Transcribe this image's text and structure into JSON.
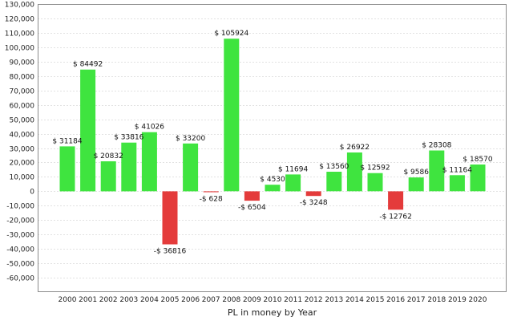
{
  "chart_data": {
    "type": "bar",
    "title": "",
    "xlabel": "PL in money by Year",
    "ylabel": "",
    "ylim": [
      -70000,
      130000
    ],
    "yticks": [
      -60000,
      -50000,
      -40000,
      -30000,
      -20000,
      -10000,
      0,
      10000,
      20000,
      30000,
      40000,
      50000,
      60000,
      70000,
      80000,
      90000,
      100000,
      110000,
      120000,
      130000
    ],
    "ytick_labels": [
      "-60,000",
      "-50,000",
      "-40,000",
      "-30,000",
      "-20,000",
      "-10,000",
      "0",
      "10,000",
      "20,000",
      "30,000",
      "40,000",
      "50,000",
      "60,000",
      "70,000",
      "80,000",
      "90,000",
      "100,000",
      "110,000",
      "120,000",
      "130,000"
    ],
    "grid": true,
    "categories": [
      "2000",
      "2001",
      "2002",
      "2003",
      "2004",
      "2005",
      "2006",
      "2007",
      "2008",
      "2009",
      "2010",
      "2011",
      "2012",
      "2013",
      "2014",
      "2015",
      "2016",
      "2017",
      "2018",
      "2019",
      "2020"
    ],
    "values": [
      31184,
      84492,
      20832,
      33816,
      41026,
      -36816,
      33200,
      -628,
      105924,
      -6504,
      4530,
      11694,
      -3248,
      13560,
      26922,
      12592,
      -12762,
      9586,
      28308,
      11164,
      18570
    ],
    "data_labels": [
      "$ 31184",
      "$ 84492",
      "$ 20832",
      "$ 33816",
      "$ 41026",
      "-$ 36816",
      "$ 33200",
      "-$ 628",
      "$ 105924",
      "-$ 6504",
      "$ 4530",
      "$ 11694",
      "-$ 3248",
      "$ 13560",
      "$ 26922",
      "$ 12592",
      "-$ 12762",
      "$ 9586",
      "$ 28308",
      "$ 11164",
      "$ 18570"
    ],
    "colors": {
      "positive": "#3fe43f",
      "negative": "#e43b3b",
      "grid": "#e2e2e2",
      "frame": "#8c8c8c"
    }
  }
}
